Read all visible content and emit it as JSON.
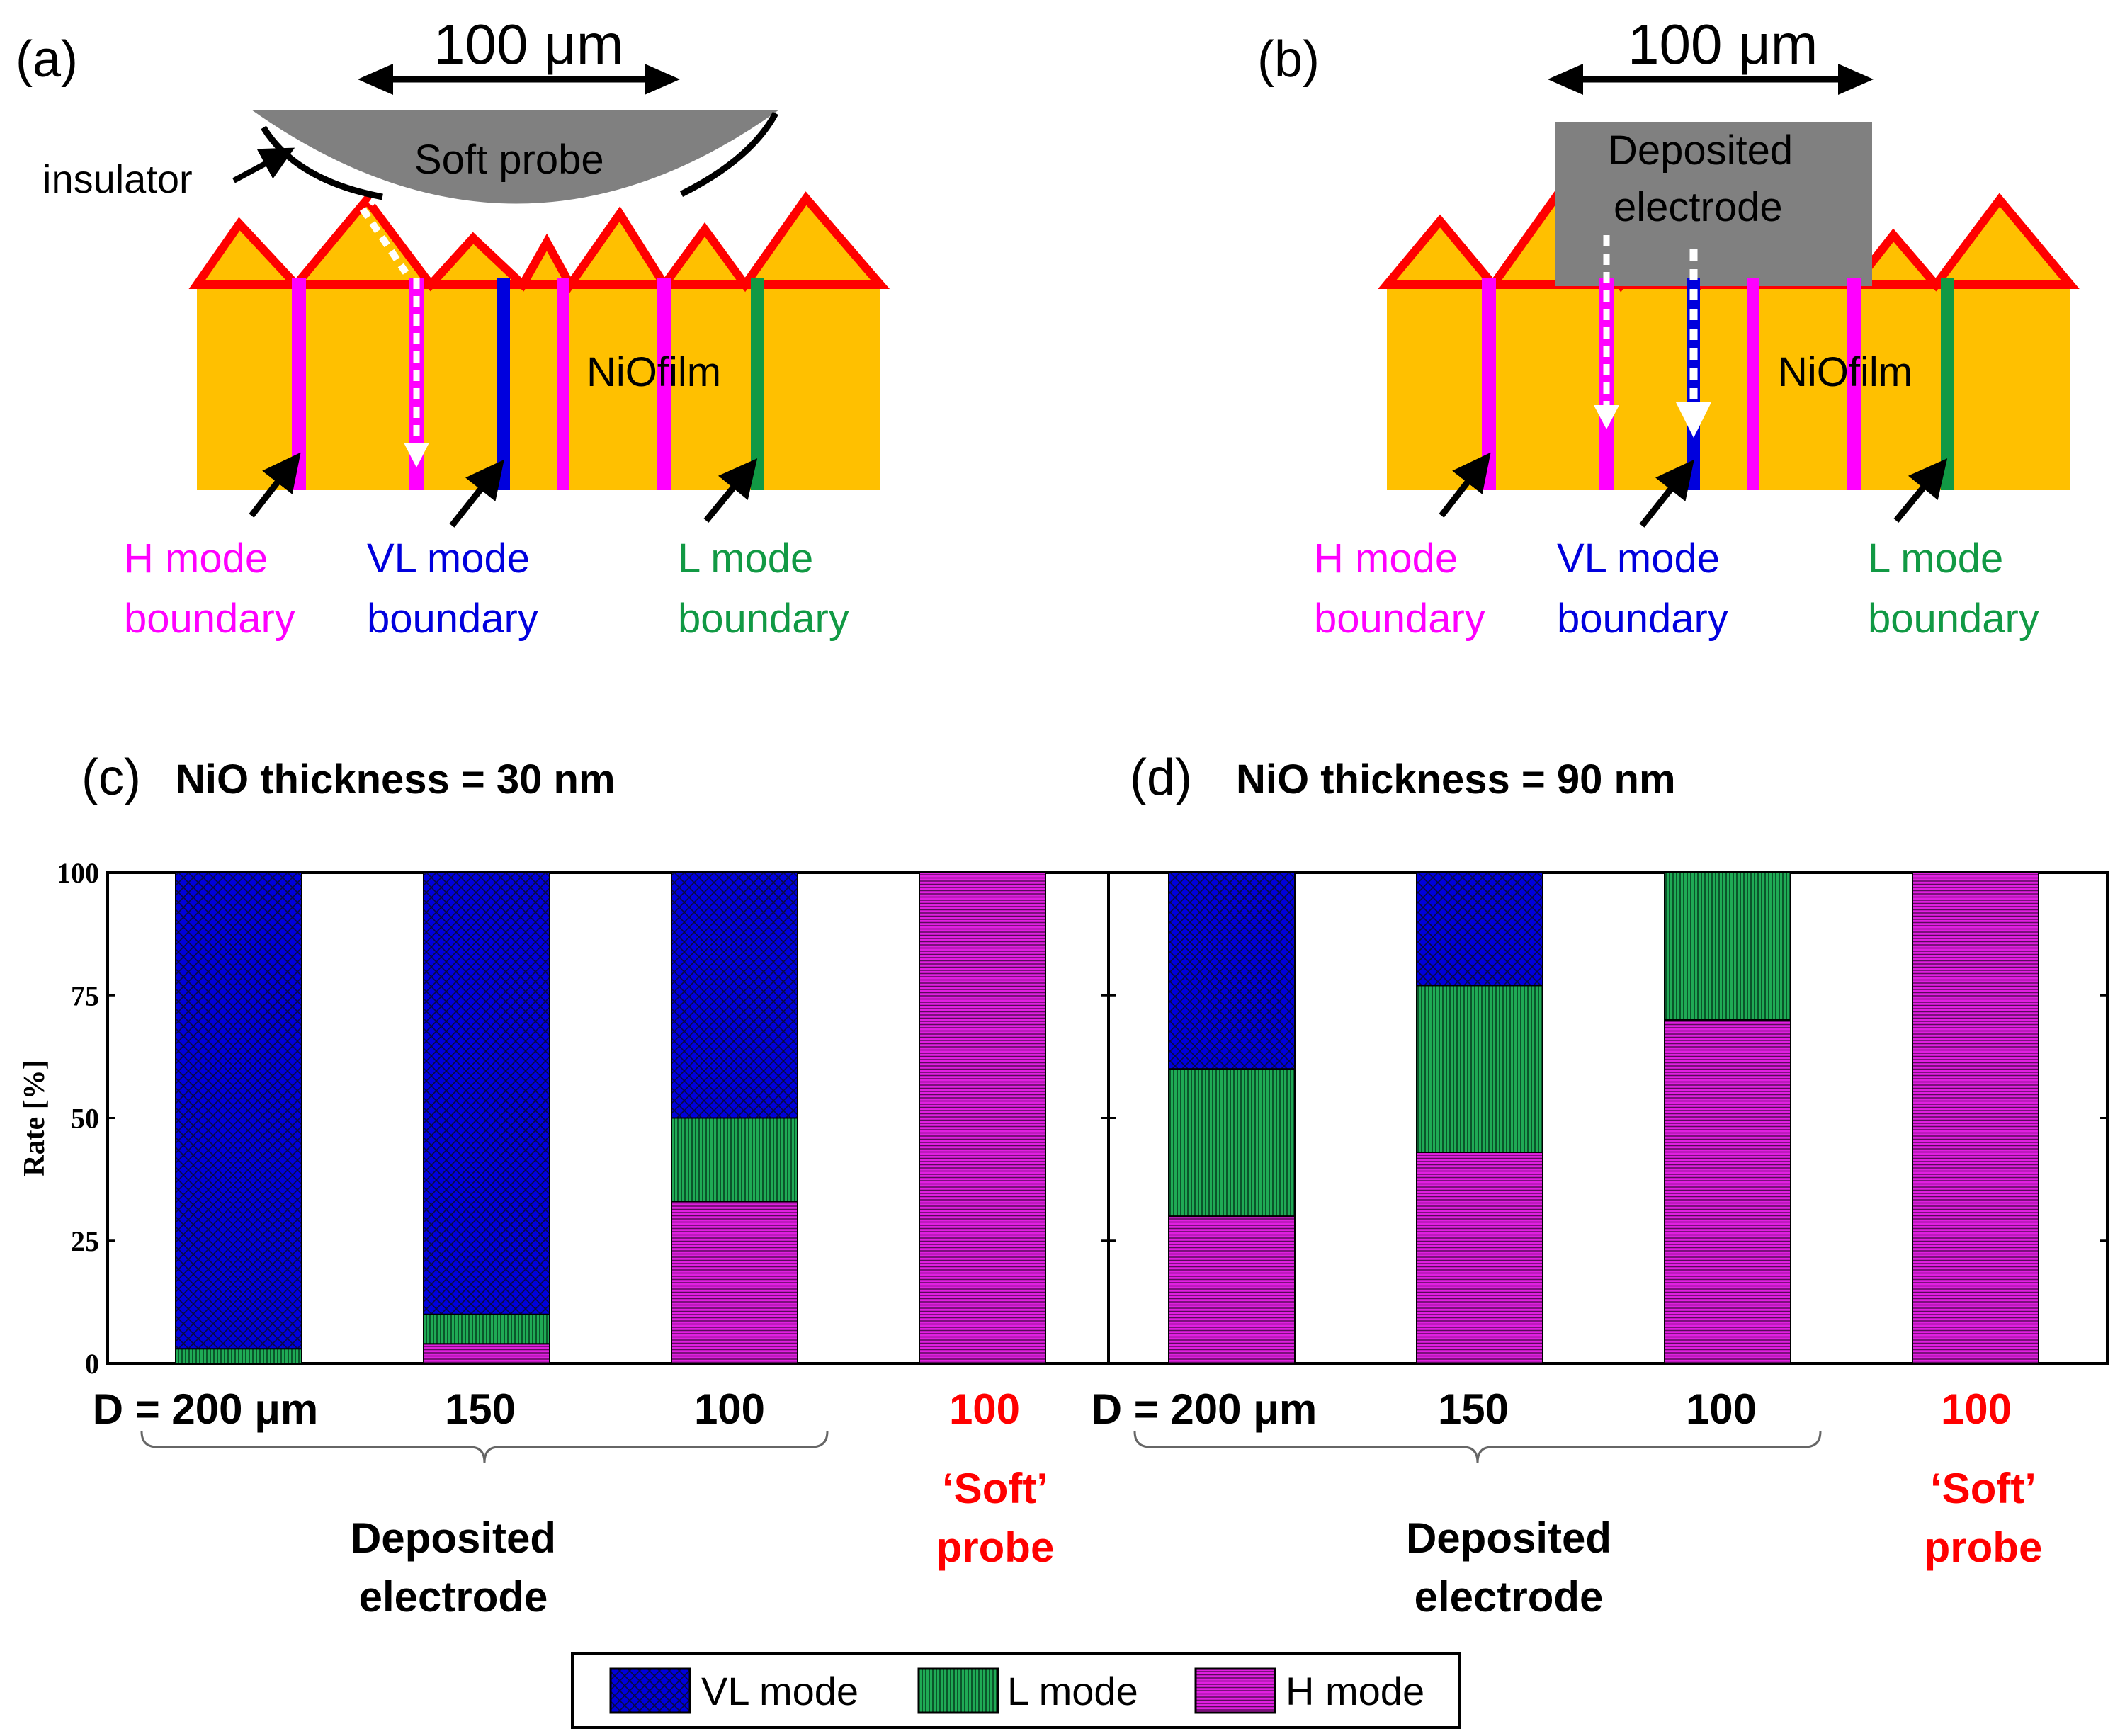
{
  "panels": {
    "a": {
      "tag": "(a)",
      "scale_label": "100 μm",
      "probe_label": "Soft probe",
      "insulator_label": "insulator",
      "film_label": "NiOfilm",
      "boundaries": [
        {
          "line1": "H mode",
          "line2": "boundary",
          "color": "#ff00ff"
        },
        {
          "line1": "VL mode",
          "line2": "boundary",
          "color": "#0000dd"
        },
        {
          "line1": "L mode",
          "line2": "boundary",
          "color": "#119944"
        }
      ]
    },
    "b": {
      "tag": "(b)",
      "scale_label": "100 μm",
      "electrode_line1": "Deposited",
      "electrode_line2": "electrode",
      "film_label": "NiOfilm",
      "boundaries": [
        {
          "line1": "H mode",
          "line2": "boundary",
          "color": "#ff00ff"
        },
        {
          "line1": "VL mode",
          "line2": "boundary",
          "color": "#0000dd"
        },
        {
          "line1": "L mode",
          "line2": "boundary",
          "color": "#119944"
        }
      ]
    },
    "c": {
      "tag": "(c)",
      "title": "NiO thickness = 30 nm"
    },
    "d": {
      "tag": "(d)",
      "title": "NiO thickness = 90 nm"
    }
  },
  "colors": {
    "film": "#ffc000",
    "film_top": "#ff0000",
    "probe": "#808080",
    "vl": "#0000dd",
    "l": "#119944",
    "h": "#e020e0",
    "red_label": "#ff0000"
  },
  "chart_data": [
    {
      "type": "bar",
      "stacked": true,
      "title": "NiO thickness = 30 nm",
      "ylabel": "Rate [%]",
      "ylim": [
        0,
        100
      ],
      "yticks": [
        0,
        25,
        50,
        75,
        100
      ],
      "categories": [
        "D = 200 μm",
        "150",
        "100",
        "100"
      ],
      "category_colors": [
        "#000000",
        "#000000",
        "#000000",
        "#ff0000"
      ],
      "group_labels": [
        {
          "line1": "Deposited",
          "line2": "electrode",
          "color": "#000000"
        },
        {
          "line1": "‘Soft’",
          "line2": "probe",
          "color": "#ff0000"
        }
      ],
      "series": [
        {
          "name": "H mode",
          "values": [
            0,
            4,
            33,
            100
          ]
        },
        {
          "name": "L mode",
          "values": [
            3,
            6,
            17,
            0
          ]
        },
        {
          "name": "VL mode",
          "values": [
            97,
            90,
            50,
            0
          ]
        }
      ]
    },
    {
      "type": "bar",
      "stacked": true,
      "title": "NiO thickness = 90 nm",
      "ylabel": "",
      "ylim": [
        0,
        100
      ],
      "yticks": [
        0,
        25,
        50,
        75,
        100
      ],
      "categories": [
        "D = 200 μm",
        "150",
        "100",
        "100"
      ],
      "category_colors": [
        "#000000",
        "#000000",
        "#000000",
        "#ff0000"
      ],
      "group_labels": [
        {
          "line1": "Deposited",
          "line2": "electrode",
          "color": "#000000"
        },
        {
          "line1": "‘Soft’",
          "line2": "probe",
          "color": "#ff0000"
        }
      ],
      "series": [
        {
          "name": "H mode",
          "values": [
            30,
            43,
            70,
            100
          ]
        },
        {
          "name": "L mode",
          "values": [
            30,
            34,
            30,
            0
          ]
        },
        {
          "name": "VL mode",
          "values": [
            40,
            23,
            0,
            0
          ]
        }
      ]
    }
  ],
  "legend": [
    {
      "label": "VL mode",
      "pattern": "vl"
    },
    {
      "label": "L mode",
      "pattern": "l"
    },
    {
      "label": "H mode",
      "pattern": "h"
    }
  ]
}
